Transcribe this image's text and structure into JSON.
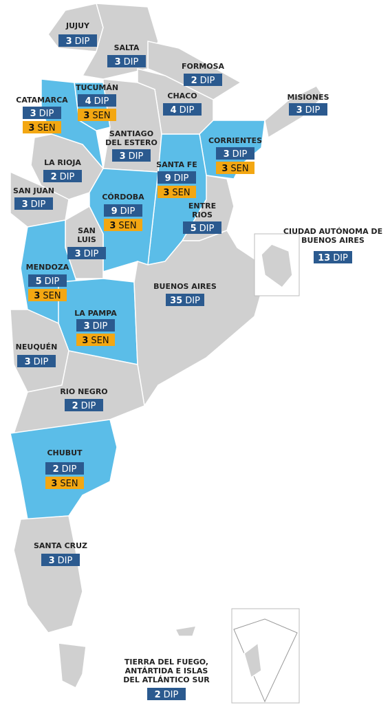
{
  "dip_label": "DIP",
  "sen_label": "SEN",
  "regions": [
    {
      "name": [
        "JUJUY"
      ],
      "dip": 3
    },
    {
      "name": [
        "SALTA"
      ],
      "dip": 3
    },
    {
      "name": [
        "FORMOSA"
      ],
      "dip": 2
    },
    {
      "name": [
        "MISIONES"
      ],
      "dip": 3
    },
    {
      "name": [
        "CATAMARCA"
      ],
      "dip": 3,
      "sen": 3
    },
    {
      "name": [
        "TUCUMÁN"
      ],
      "dip": 4,
      "sen": 3
    },
    {
      "name": [
        "CHACO"
      ],
      "dip": 4
    },
    {
      "name": [
        "SANTIAGO",
        "DEL ESTERO"
      ],
      "dip": 3
    },
    {
      "name": [
        "CORRIENTES"
      ],
      "dip": 3,
      "sen": 3
    },
    {
      "name": [
        "LA RIOJA"
      ],
      "dip": 2
    },
    {
      "name": [
        "SANTA FE"
      ],
      "dip": 9,
      "sen": 3
    },
    {
      "name": [
        "SAN JUAN"
      ],
      "dip": 3
    },
    {
      "name": [
        "CÓRDOBA"
      ],
      "dip": 9,
      "sen": 3
    },
    {
      "name": [
        "ENTRE",
        "RIOS"
      ],
      "dip": 5
    },
    {
      "name": [
        "SAN",
        "LUIS"
      ],
      "dip": 3
    },
    {
      "name": [
        "CIUDAD AUTÓNOMA DE",
        "BUENOS AIRES"
      ],
      "dip": 13
    },
    {
      "name": [
        "MENDOZA"
      ],
      "dip": 5,
      "sen": 3
    },
    {
      "name": [
        "BUENOS AIRES"
      ],
      "dip": 35
    },
    {
      "name": [
        "LA PAMPA"
      ],
      "dip": 3,
      "sen": 3
    },
    {
      "name": [
        "NEUQUÉN"
      ],
      "dip": 3
    },
    {
      "name": [
        "RIO NEGRO"
      ],
      "dip": 2
    },
    {
      "name": [
        "CHUBUT"
      ],
      "dip": 2,
      "sen": 3
    },
    {
      "name": [
        "SANTA CRUZ"
      ],
      "dip": 3
    },
    {
      "name": [
        "TIERRA DEL FUEGO,",
        "ANTÁRTIDA E ISLAS",
        "DEL ATLÁNTICO SUR"
      ],
      "dip": 2
    }
  ]
}
